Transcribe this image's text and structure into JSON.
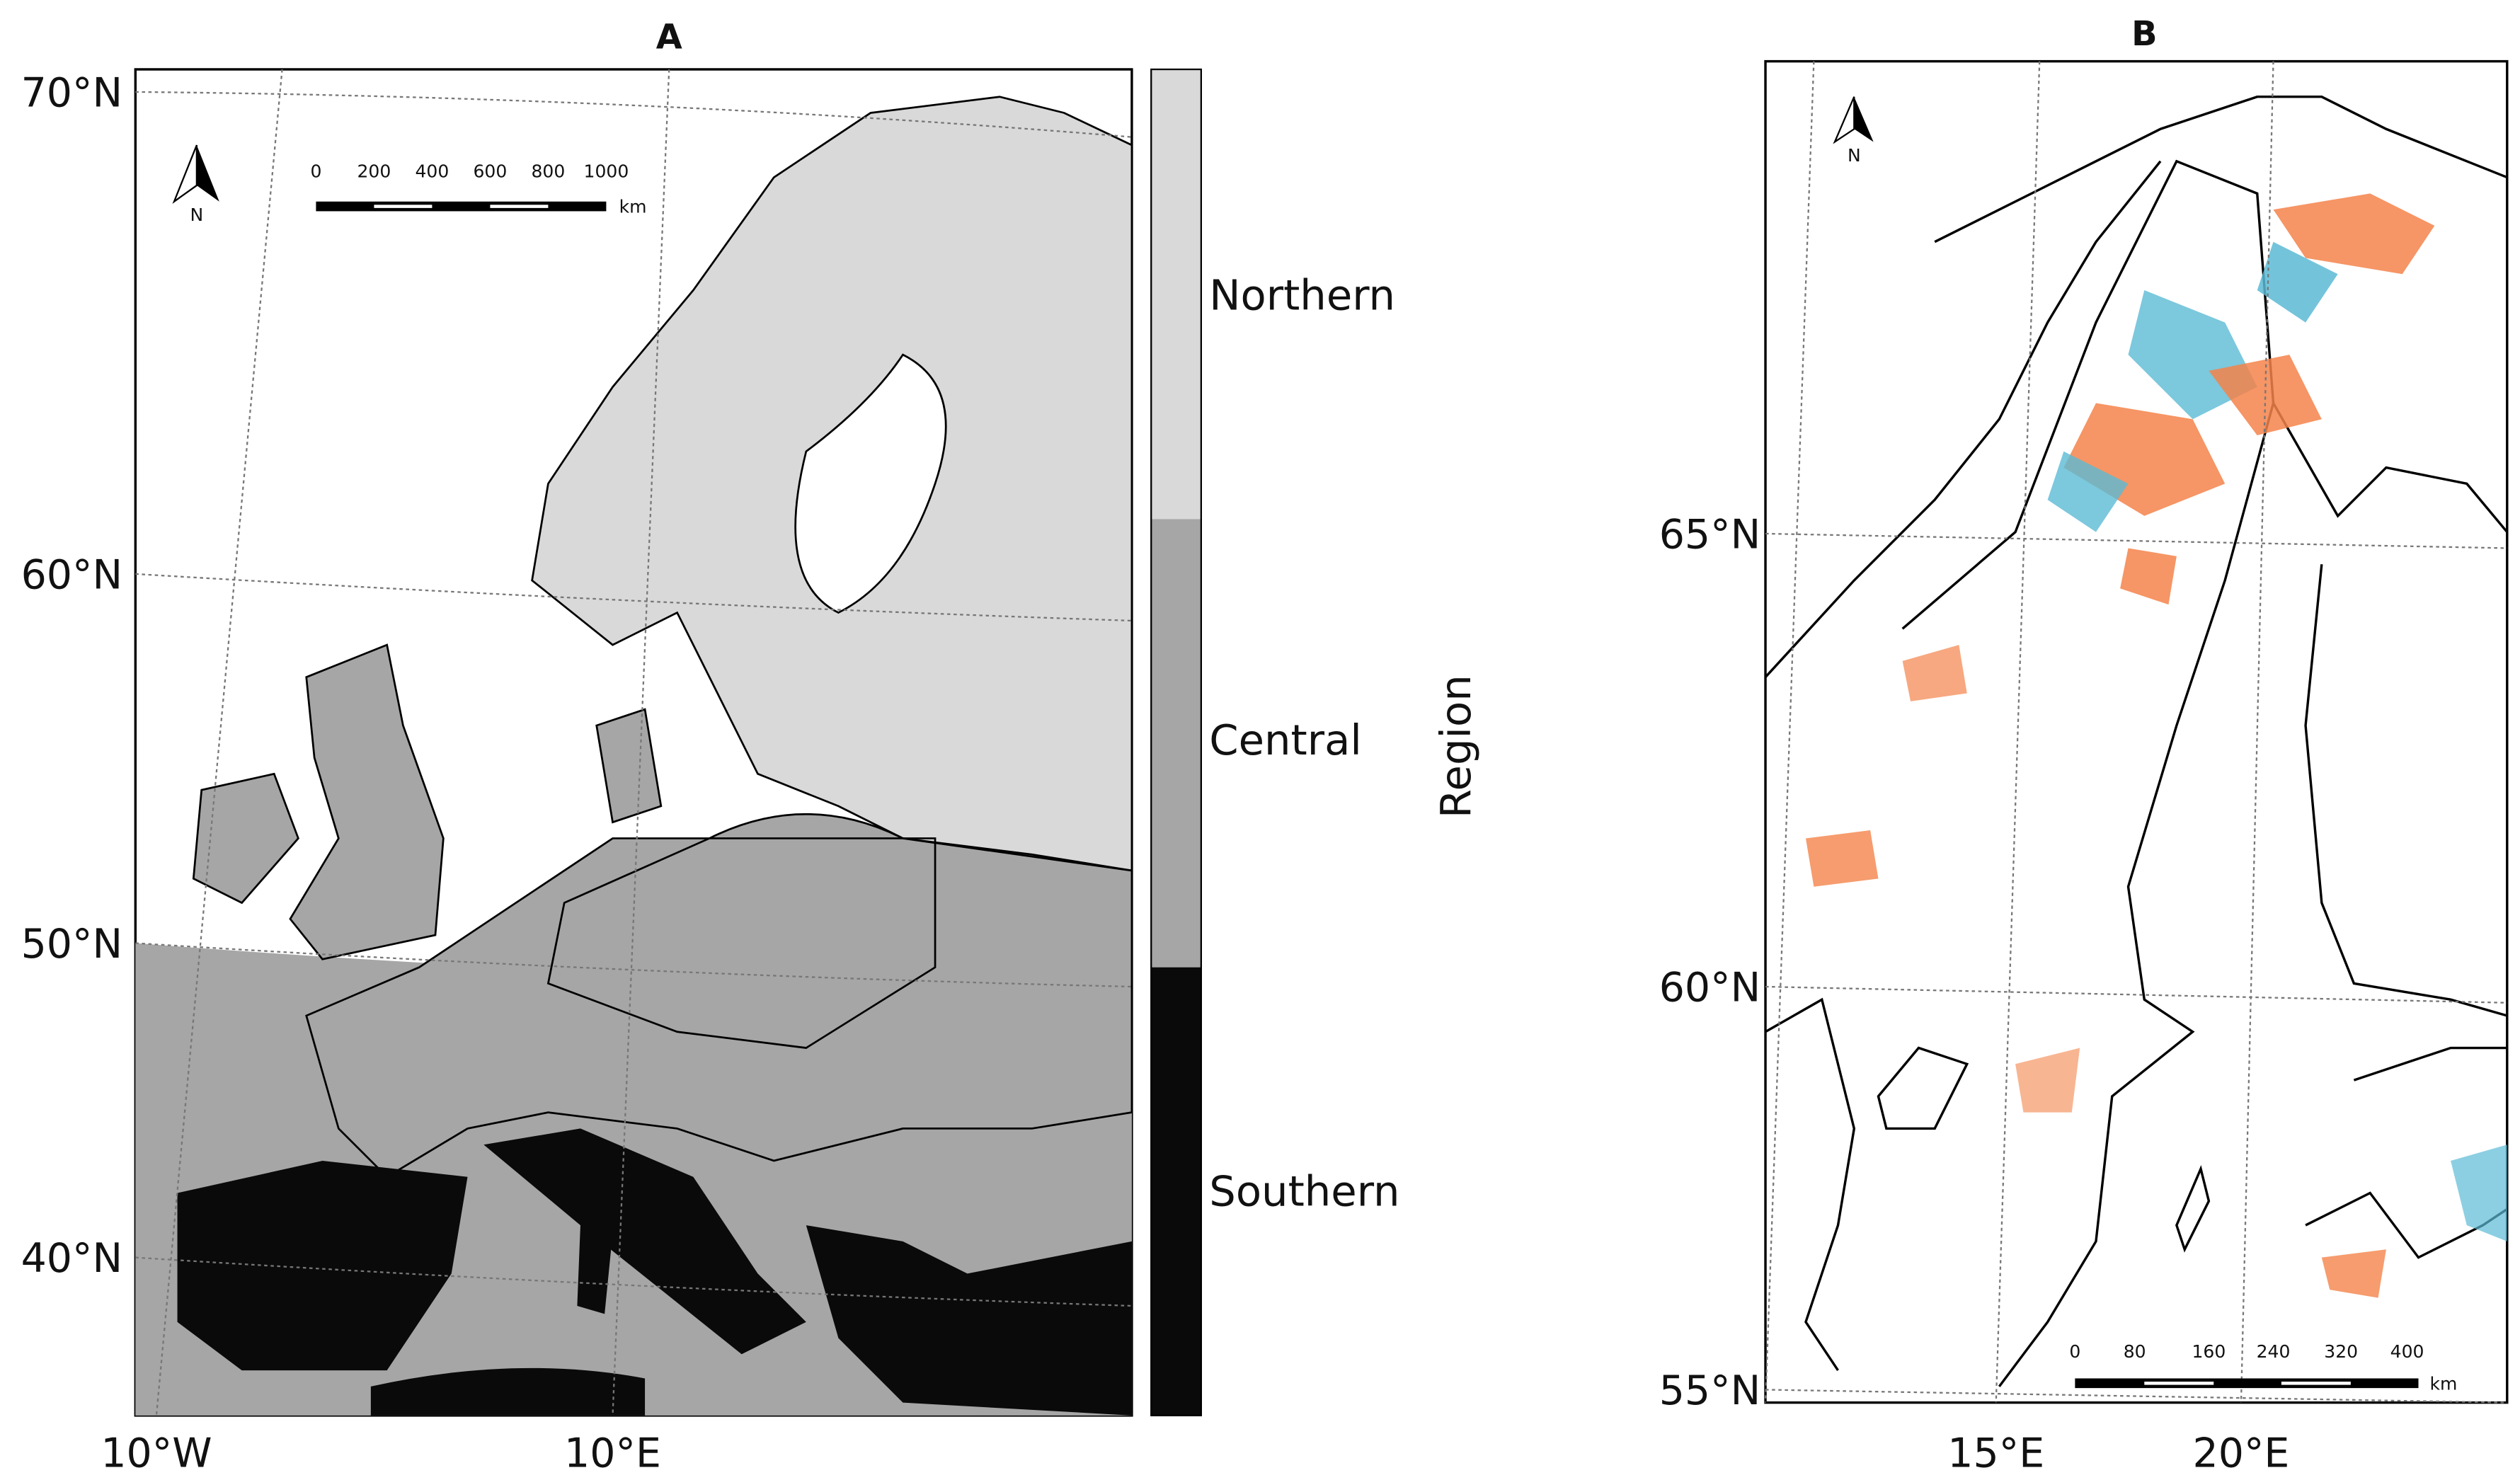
{
  "panels": [
    {
      "title": "A",
      "lat_labels": [
        "70°N",
        "60°N",
        "50°N",
        "40°N"
      ],
      "lon_labels": [
        "10°W",
        "10°E"
      ],
      "north": "N",
      "scale_labels": [
        "0",
        "200",
        "400",
        "600",
        "800",
        "1000"
      ],
      "scale_unit": "km",
      "legend": {
        "title": "Region",
        "labels": [
          "Northern",
          "Central",
          "Southern"
        ]
      }
    },
    {
      "title": "B",
      "lat_labels": [
        "65°N",
        "60°N",
        "55°N"
      ],
      "lon_labels": [
        "15°E",
        "20°E"
      ],
      "north": "N",
      "scale_labels": [
        "0",
        "80",
        "160",
        "240",
        "320",
        "400"
      ],
      "scale_unit": "km"
    }
  ]
}
